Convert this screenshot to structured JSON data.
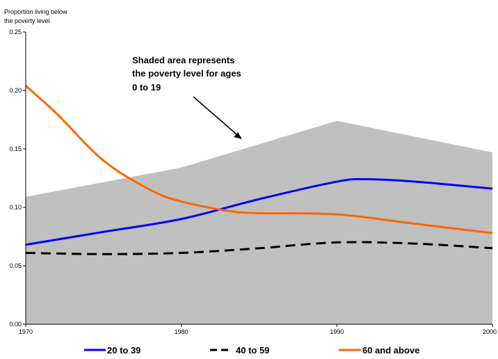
{
  "chart_data": {
    "type": "line",
    "ylabel_lines": [
      "Proportion living below",
      "the poverty level"
    ],
    "x_ticks": [
      "1970",
      "1980",
      "1990",
      "2000"
    ],
    "y_ticks": [
      "0.00",
      "0.05",
      "0.10",
      "0.15",
      "0.20",
      "0.25"
    ],
    "xlim": [
      1970,
      2000
    ],
    "ylim": [
      0,
      0.25
    ],
    "grid": false,
    "legend_position": "bottom",
    "area": {
      "x": [
        1970,
        1980,
        1990,
        2000
      ],
      "values": [
        0.109,
        0.134,
        0.174,
        0.147
      ],
      "color": "#c0c0c0"
    },
    "series": [
      {
        "name": "20 to 39",
        "color": "#0000ff",
        "dash": "solid",
        "x": [
          1970,
          1975,
          1980,
          1985,
          1990,
          1992,
          1995,
          2000
        ],
        "values": [
          0.068,
          0.079,
          0.09,
          0.107,
          0.122,
          0.124,
          0.122,
          0.116
        ]
      },
      {
        "name": "40 to 59",
        "color": "#000000",
        "dash": "dashed",
        "x": [
          1970,
          1975,
          1980,
          1985,
          1990,
          1995,
          2000
        ],
        "values": [
          0.061,
          0.06,
          0.061,
          0.065,
          0.07,
          0.069,
          0.065
        ]
      },
      {
        "name": "60 and above",
        "color": "#ff6600",
        "dash": "solid",
        "x": [
          1970,
          1972,
          1975,
          1978,
          1980,
          1983,
          1985,
          1990,
          1995,
          2000
        ],
        "values": [
          0.204,
          0.18,
          0.14,
          0.115,
          0.105,
          0.097,
          0.095,
          0.094,
          0.086,
          0.078
        ]
      }
    ],
    "annotation_lines": [
      "Shaded area represents",
      "the poverty level for ages",
      "0 to 19"
    ]
  }
}
